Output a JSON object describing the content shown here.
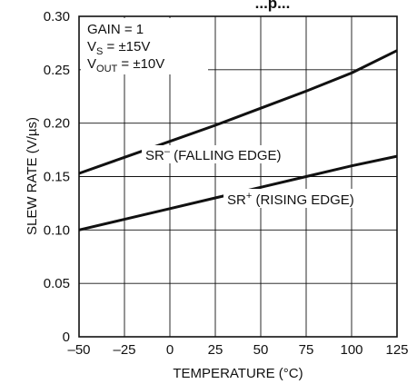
{
  "chart_data": {
    "type": "line",
    "title": "...p...",
    "xlabel": "TEMPERATURE (°C)",
    "ylabel": "SLEW RATE (V/µs)",
    "xlim": [
      -50,
      125
    ],
    "ylim": [
      0,
      0.3
    ],
    "grid": true,
    "x_ticks": [
      -50,
      -25,
      0,
      25,
      50,
      75,
      100,
      125
    ],
    "x_tick_labels": [
      "–50",
      "–25",
      "0",
      "25",
      "50",
      "75",
      "100",
      "125"
    ],
    "y_ticks": [
      0,
      0.05,
      0.1,
      0.15,
      0.2,
      0.25,
      0.3
    ],
    "y_tick_labels": [
      "0",
      "0.05",
      "0.10",
      "0.15",
      "0.20",
      "0.25",
      "0.30"
    ],
    "conditions": [
      {
        "main": "GAIN = 1",
        "sub": "",
        "rest": ""
      },
      {
        "main": "V",
        "sub": "S",
        "rest": " = ±15V"
      },
      {
        "main": "V",
        "sub": "OUT",
        "rest": " = ±10V"
      }
    ],
    "series": [
      {
        "name": "SR– (FALLING EDGE)",
        "label_main": "SR",
        "label_sup": "–",
        "label_rest": " (FALLING EDGE)",
        "x": [
          -50,
          -25,
          0,
          25,
          50,
          75,
          100,
          125
        ],
        "y": [
          0.153,
          0.168,
          0.183,
          0.198,
          0.214,
          0.23,
          0.247,
          0.268
        ]
      },
      {
        "name": "SR+ (RISING EDGE)",
        "label_main": "SR",
        "label_sup": "+",
        "label_rest": " (RISING EDGE)",
        "x": [
          -50,
          -25,
          0,
          25,
          50,
          75,
          100,
          125
        ],
        "y": [
          0.1,
          0.11,
          0.12,
          0.13,
          0.14,
          0.15,
          0.16,
          0.169
        ]
      }
    ]
  }
}
